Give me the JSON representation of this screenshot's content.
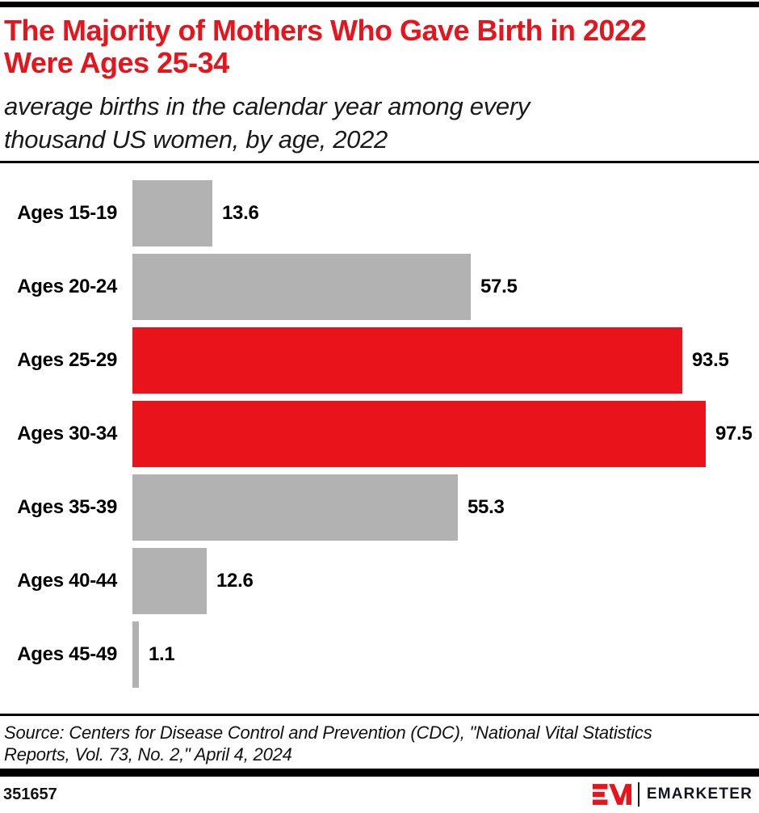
{
  "header": {
    "title_lines": [
      "The Majority of Mothers Who Gave Birth in 2022",
      "Were Ages 25-34"
    ],
    "subtitle_lines": [
      "average births in the calendar year among every",
      "thousand US women, by age, 2022"
    ]
  },
  "chart_data": {
    "type": "bar",
    "orientation": "horizontal",
    "title": "The Majority of Mothers Who Gave Birth in 2022 Were Ages 25-34",
    "subtitle": "average births in the calendar year among every thousand US women, by age, 2022",
    "categories": [
      "Ages 15-19",
      "Ages 20-24",
      "Ages 25-29",
      "Ages 30-34",
      "Ages 35-39",
      "Ages 40-44",
      "Ages 45-49"
    ],
    "values": [
      13.6,
      57.5,
      93.5,
      97.5,
      55.3,
      12.6,
      1.1
    ],
    "highlight_indices": [
      2,
      3
    ],
    "xlabel": "",
    "ylabel": "",
    "xlim": [
      0,
      100
    ],
    "data_labels": true,
    "grid": false,
    "legend": false
  },
  "colors": {
    "accent_red": "#E8131B",
    "bar_gray": "#B2B2B2",
    "rule_black": "#000000"
  },
  "source": {
    "lines": [
      "Source: Centers for Disease Control and Prevention (CDC), \"National Vital Statistics",
      "Reports, Vol. 73, No. 2,\" April 4, 2024"
    ]
  },
  "footer": {
    "chart_id": "351657",
    "brand": "EMARKETER"
  }
}
